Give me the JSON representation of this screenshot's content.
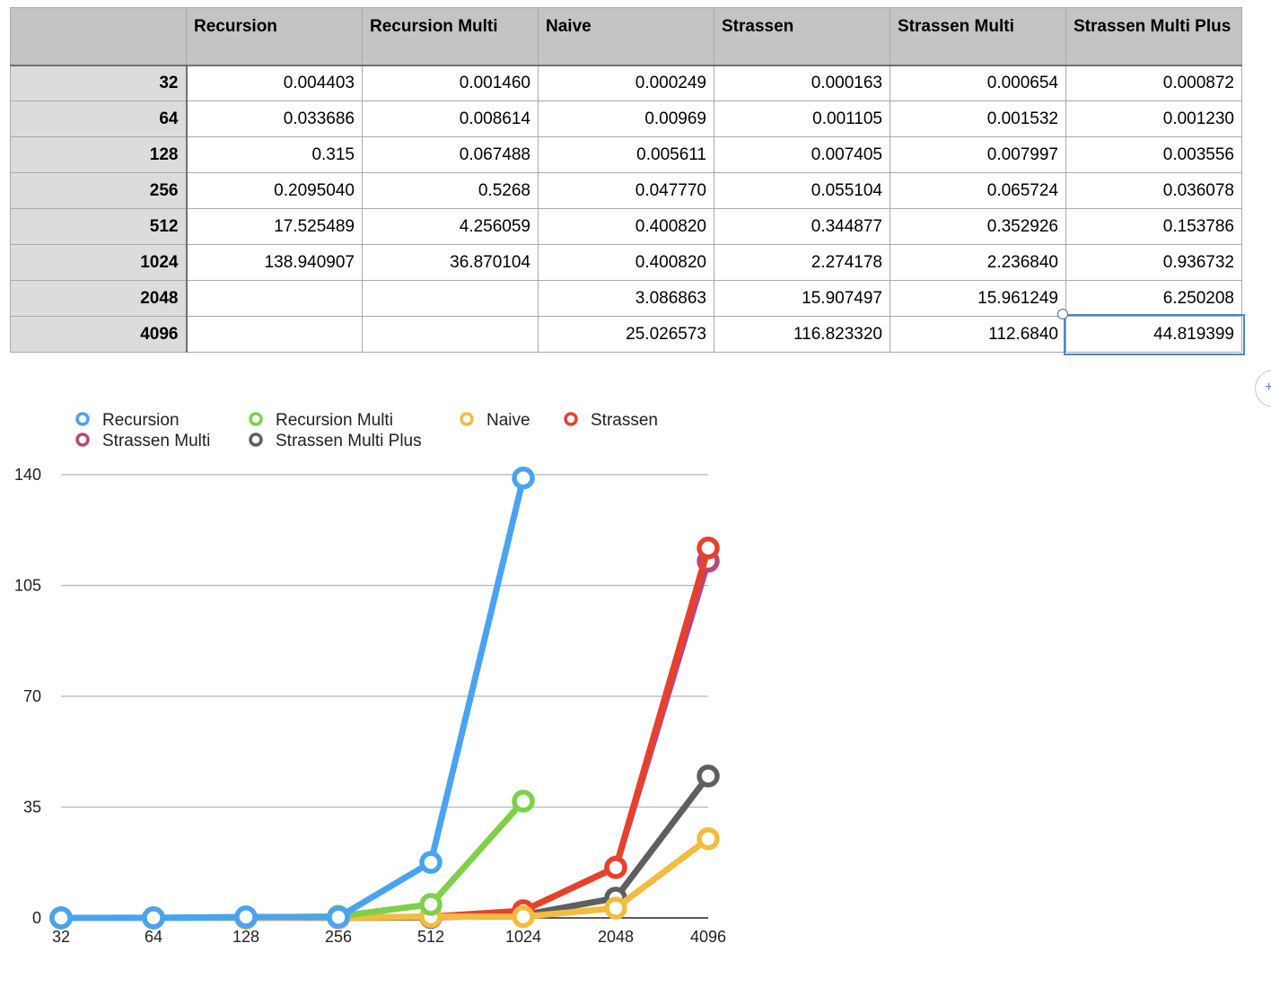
{
  "table": {
    "headers": [
      "Recursion",
      "Recursion Multi",
      "Naive",
      "Strassen",
      "Strassen Multi",
      "Strassen Multi Plus"
    ],
    "rows": [
      {
        "size": "32",
        "cells": [
          "0.004403",
          "0.001460",
          "0.000249",
          "0.000163",
          "0.000654",
          "0.000872"
        ]
      },
      {
        "size": "64",
        "cells": [
          "0.033686",
          "0.008614",
          "0.00969",
          "0.001105",
          "0.001532",
          "0.001230"
        ]
      },
      {
        "size": "128",
        "cells": [
          "0.315",
          "0.067488",
          "0.005611",
          "0.007405",
          "0.007997",
          "0.003556"
        ]
      },
      {
        "size": "256",
        "cells": [
          "0.2095040",
          "0.5268",
          "0.047770",
          "0.055104",
          "0.065724",
          "0.036078"
        ]
      },
      {
        "size": "512",
        "cells": [
          "17.525489",
          "4.256059",
          "0.400820",
          "0.344877",
          "0.352926",
          "0.153786"
        ]
      },
      {
        "size": "1024",
        "cells": [
          "138.940907",
          "36.870104",
          "0.400820",
          "2.274178",
          "2.236840",
          "0.936732"
        ]
      },
      {
        "size": "2048",
        "cells": [
          "",
          "",
          "3.086863",
          "15.907497",
          "15.961249",
          "6.250208"
        ]
      },
      {
        "size": "4096",
        "cells": [
          "",
          "",
          "25.026573",
          "116.823320",
          "112.6840",
          "44.819399"
        ]
      }
    ]
  },
  "chart_data": {
    "type": "line",
    "title": "",
    "xlabel": "",
    "ylabel": "",
    "categories": [
      "32",
      "64",
      "128",
      "256",
      "512",
      "1024",
      "2048",
      "4096"
    ],
    "ylim": [
      0,
      140
    ],
    "yticks": [
      0,
      35,
      70,
      105,
      140
    ],
    "legend_position": "top-left",
    "series": [
      {
        "name": "Recursion",
        "color": "#4aa3f0",
        "values": [
          0.004403,
          0.033686,
          0.315,
          0.209504,
          17.525489,
          138.940907,
          null,
          null
        ]
      },
      {
        "name": "Recursion Multi",
        "color": "#7ed04b",
        "values": [
          0.00146,
          0.008614,
          0.067488,
          0.5268,
          4.256059,
          36.870104,
          null,
          null
        ]
      },
      {
        "name": "Naive",
        "color": "#f2bc3f",
        "values": [
          0.000249,
          0.00969,
          0.005611,
          0.04777,
          0.40082,
          0.40082,
          3.086863,
          25.026573
        ]
      },
      {
        "name": "Strassen",
        "color": "#e8412b",
        "values": [
          0.000163,
          0.001105,
          0.007405,
          0.055104,
          0.344877,
          2.274178,
          15.907497,
          116.82332
        ]
      },
      {
        "name": "Strassen Multi",
        "color": "#b9467c",
        "values": [
          0.000654,
          0.001532,
          0.007997,
          0.065724,
          0.352926,
          2.23684,
          15.961249,
          112.684
        ]
      },
      {
        "name": "Strassen Multi Plus",
        "color": "#5f5f5f",
        "values": [
          0.000872,
          0.00123,
          0.003556,
          0.036078,
          0.153786,
          0.936732,
          6.250208,
          44.819399
        ]
      }
    ]
  }
}
